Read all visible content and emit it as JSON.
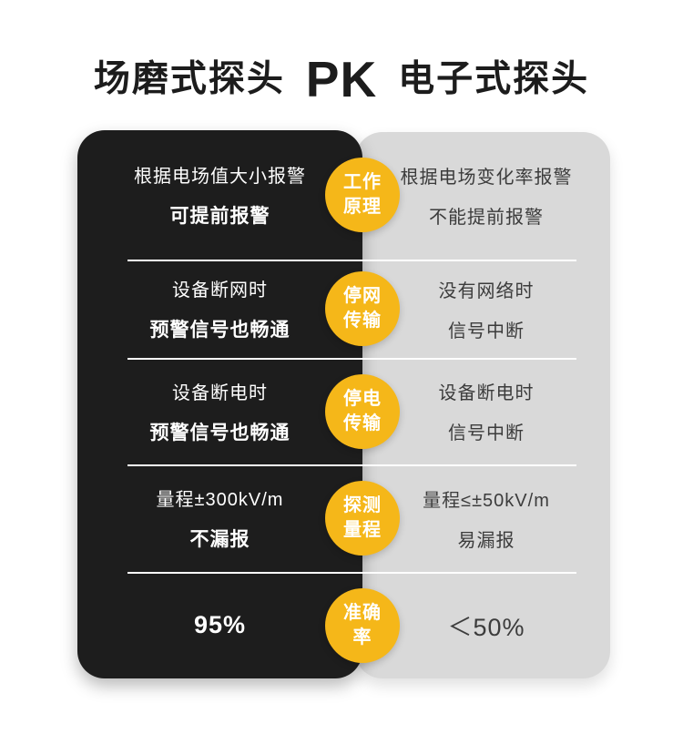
{
  "title": {
    "left": "场磨式探头",
    "pk": "PK",
    "right": "电子式探头"
  },
  "colors": {
    "panel_left": "#1d1d1d",
    "panel_right": "#d9d9d9",
    "badge": "#f5b719",
    "divider": "#ffffff",
    "left_text": "#ffffff",
    "right_text": "#3c3c3c",
    "title_text": "#1c1c1c"
  },
  "rows": [
    {
      "badge_line1": "工作",
      "badge_line2": "原理",
      "left_line1": "根据电场值大小报警",
      "left_line2": "可提前报警",
      "right_line1": "根据电场变化率报警",
      "right_line2": "不能提前报警"
    },
    {
      "badge_line1": "停网",
      "badge_line2": "传输",
      "left_line1": "设备断网时",
      "left_line2": "预警信号也畅通",
      "right_line1": "没有网络时",
      "right_line2": "信号中断"
    },
    {
      "badge_line1": "停电",
      "badge_line2": "传输",
      "left_line1": "设备断电时",
      "left_line2": "预警信号也畅通",
      "right_line1": "设备断电时",
      "right_line2": "信号中断"
    },
    {
      "badge_line1": "探测",
      "badge_line2": "量程",
      "left_line1": "量程±300kV/m",
      "left_line2": "不漏报",
      "right_line1": "量程≤±50kV/m",
      "right_line2": "易漏报"
    },
    {
      "badge_line1": "准确",
      "badge_line2": "率",
      "left_value": "95%",
      "right_value": "＜50%"
    }
  ]
}
